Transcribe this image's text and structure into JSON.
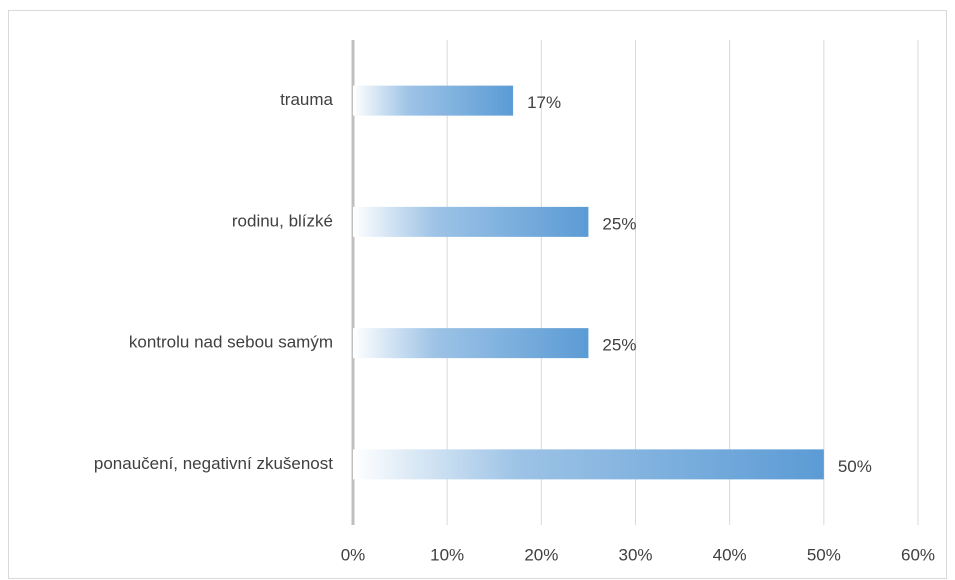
{
  "chart_data": {
    "type": "bar",
    "orientation": "horizontal",
    "categories": [
      "trauma",
      "rodinu, blízké",
      "kontrolu nad sebou samým",
      "ponaučení, negativní zkušenost"
    ],
    "values": [
      17,
      25,
      25,
      50
    ],
    "value_labels": [
      "17%",
      "25%",
      "25%",
      "50%"
    ],
    "color": "#5b9bd5",
    "xlim": [
      0,
      60
    ],
    "xticks": [
      {
        "value": 0,
        "label": "0%"
      },
      {
        "value": 10,
        "label": "10%"
      },
      {
        "value": 20,
        "label": "20%"
      },
      {
        "value": 30,
        "label": "30%"
      },
      {
        "value": 40,
        "label": "40%"
      },
      {
        "value": 50,
        "label": "50%"
      },
      {
        "value": 60,
        "label": "60%"
      }
    ],
    "grid": true
  }
}
